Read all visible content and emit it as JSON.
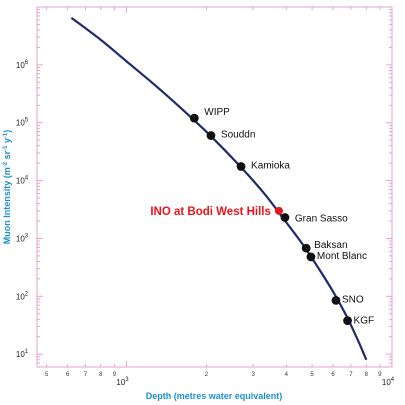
{
  "chart_data": {
    "type": "line",
    "title": "",
    "xlabel": "Depth (metres water equivalent)",
    "ylabel_parts": [
      "Muon Intensity (m",
      "-2",
      " sr",
      "-1",
      " y",
      "-1",
      ")"
    ],
    "x_scale": "log",
    "y_scale": "log",
    "xlim": [
      460,
      10000
    ],
    "ylim": [
      6,
      10000000
    ],
    "grid": false,
    "legend": "none",
    "x_major_ticks": [
      {
        "value": 1000,
        "base": "10",
        "exp": "3"
      },
      {
        "value": 10000,
        "base": "10",
        "exp": "4"
      }
    ],
    "y_major_ticks": [
      {
        "value": 10,
        "base": "10",
        "exp": "1"
      },
      {
        "value": 100,
        "base": "10",
        "exp": "2"
      },
      {
        "value": 1000,
        "base": "10",
        "exp": "3"
      },
      {
        "value": 10000,
        "base": "10",
        "exp": "4"
      },
      {
        "value": 100000,
        "base": "10",
        "exp": "5"
      },
      {
        "value": 1000000,
        "base": "10",
        "exp": "6"
      }
    ],
    "x_minor_labels": [
      {
        "value": 500,
        "label": "5"
      },
      {
        "value": 600,
        "label": "6"
      },
      {
        "value": 700,
        "label": "7"
      },
      {
        "value": 800,
        "label": "8"
      },
      {
        "value": 900,
        "label": "9"
      },
      {
        "value": 2000,
        "label": "2"
      },
      {
        "value": 3000,
        "label": "3"
      },
      {
        "value": 4000,
        "label": "4"
      },
      {
        "value": 5000,
        "label": "5"
      },
      {
        "value": 6000,
        "label": "6"
      },
      {
        "value": 7000,
        "label": "7"
      },
      {
        "value": 8000,
        "label": "8"
      },
      {
        "value": 9000,
        "label": "9"
      }
    ],
    "curve": {
      "name": "",
      "x": [
        620,
        800,
        1000,
        1300,
        1700,
        2100,
        2700,
        3300,
        3900,
        4600,
        5300,
        6000,
        6800,
        7500,
        8000
      ],
      "y": [
        6500000,
        2700000,
        1150000,
        420000,
        140000,
        56000,
        17000,
        6000,
        2200,
        800,
        300,
        120,
        42,
        16,
        8
      ]
    },
    "points": [
      {
        "name": "WIPP",
        "x": 1800,
        "y": 120000,
        "color": "#111111"
      },
      {
        "name": "Souddn",
        "x": 2080,
        "y": 60000,
        "color": "#111111"
      },
      {
        "name": "Kamioka",
        "x": 2700,
        "y": 17500,
        "color": "#111111"
      },
      {
        "name": "INO at Bodi West Hills",
        "x": 3750,
        "y": 3000,
        "color": "#e8141b",
        "highlight": true
      },
      {
        "name": "Gran Sasso",
        "x": 3950,
        "y": 2300,
        "color": "#111111"
      },
      {
        "name": "Baksan",
        "x": 4750,
        "y": 680,
        "color": "#111111"
      },
      {
        "name": "Mont Blanc",
        "x": 4950,
        "y": 480,
        "color": "#111111"
      },
      {
        "name": "SNO",
        "x": 6150,
        "y": 85,
        "color": "#111111"
      },
      {
        "name": "KGF",
        "x": 6800,
        "y": 38,
        "color": "#111111"
      }
    ],
    "colors": {
      "curve": "#1f2a6e",
      "frame": "#e6a3cf",
      "axis_title": "#1c8fd1",
      "highlight": "#e8141b",
      "point": "#111111"
    }
  }
}
